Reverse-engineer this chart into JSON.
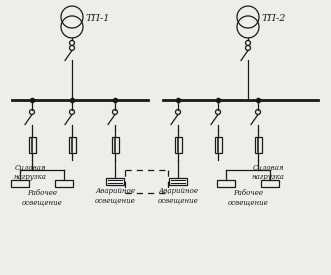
{
  "bg_color": "#eeede8",
  "line_color": "#1a1a1a",
  "tp1_label": "ТП-1",
  "tp2_label": "ТП-2",
  "label_силовая": "Силовая\nнагрузка",
  "label_рабочее": "Рабочее\nосвещение",
  "label_аварийное": "Аварийное\nосвещение",
  "font_size": 5.0,
  "title_font_size": 7.0,
  "lw": 0.9,
  "lw_bus": 2.0,
  "transformer_r": 11,
  "transformer_overlap": 5
}
